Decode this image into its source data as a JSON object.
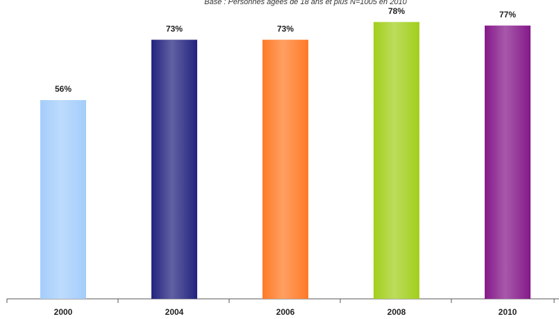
{
  "chart_data": {
    "type": "bar",
    "subtitle": "Base : Personnes âgées de 18 ans et plus  N=1005  en 2010",
    "categories": [
      "2000",
      "2004",
      "2006",
      "2008",
      "2010"
    ],
    "values": [
      56,
      73,
      73,
      78,
      77
    ],
    "value_labels": [
      "56%",
      "73%",
      "73%",
      "78%",
      "77%"
    ],
    "colors": [
      "#a4cdfb",
      "#23237f",
      "#ff7a26",
      "#a2cf1c",
      "#85198a"
    ],
    "ylim": [
      0,
      84.2
    ]
  }
}
